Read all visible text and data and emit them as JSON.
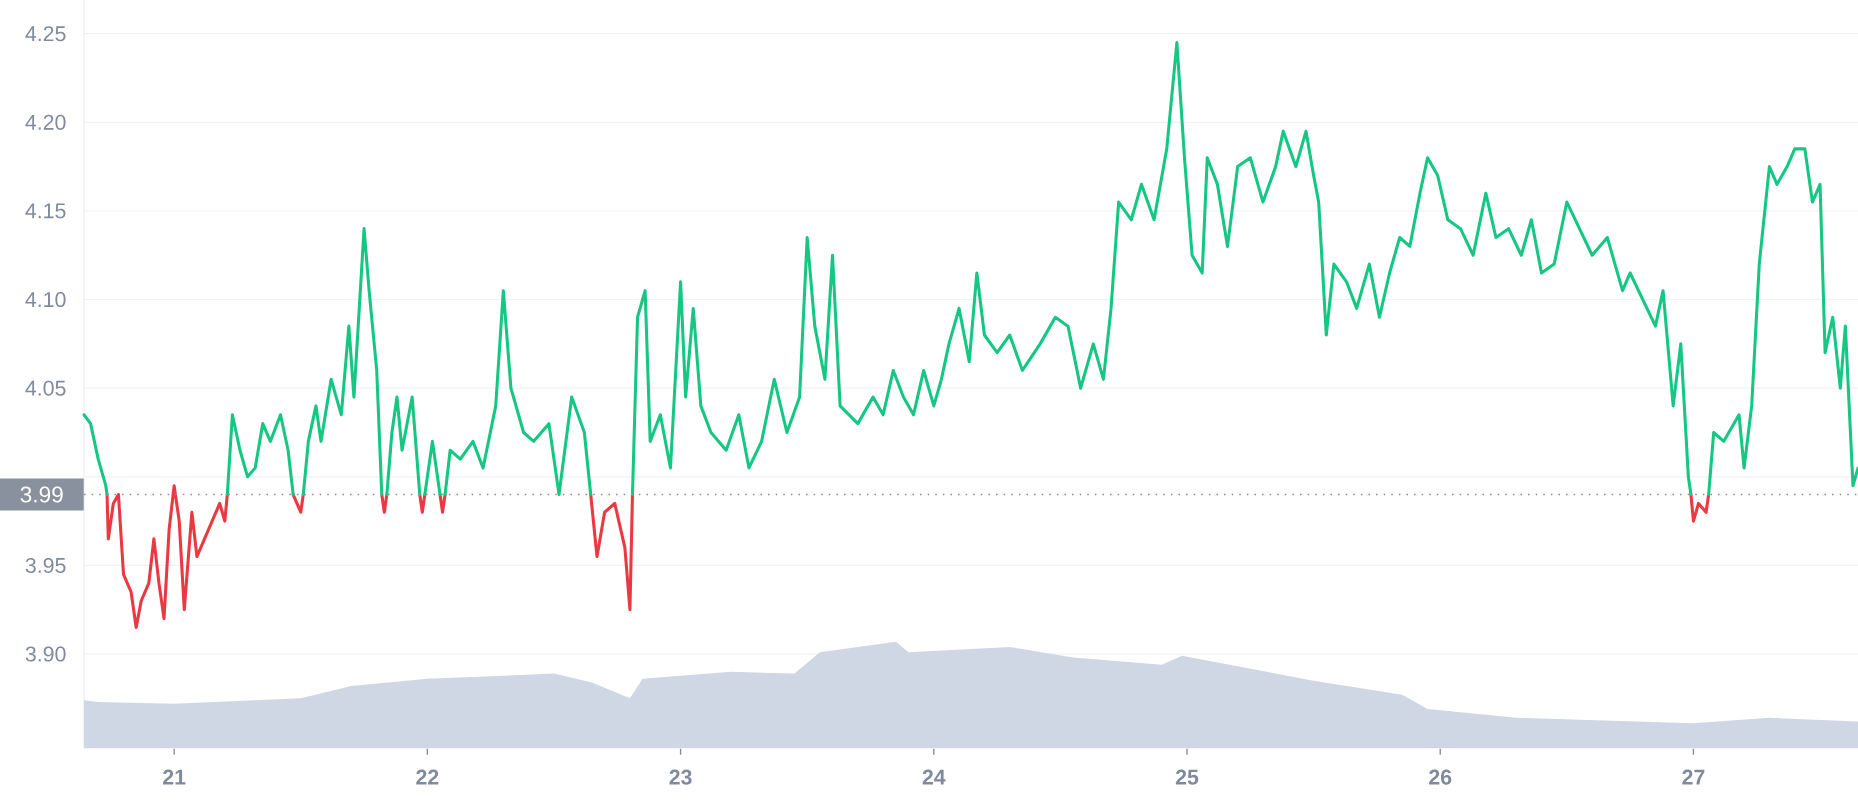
{
  "chart_data": {
    "type": "line",
    "xlim": [
      20.644,
      27.65
    ],
    "ylim": [
      3.847,
      4.269
    ],
    "xticks": [
      21,
      22,
      23,
      24,
      25,
      26,
      27
    ],
    "yticks": [
      {
        "value": 3.9,
        "label": "3.90"
      },
      {
        "value": 3.95,
        "label": "3.95"
      },
      {
        "value": 4.0,
        "label": null
      },
      {
        "value": 4.05,
        "label": "4.05"
      },
      {
        "value": 4.1,
        "label": "4.10"
      },
      {
        "value": 4.15,
        "label": "4.15"
      },
      {
        "value": 4.2,
        "label": "4.20"
      },
      {
        "value": 4.25,
        "label": "4.25"
      }
    ],
    "grid": "y",
    "ref_lines": [
      {
        "axis": "y",
        "value": 3.99,
        "label": "3.99",
        "color": "#8a919e",
        "line_style": "dotted"
      }
    ],
    "series": [
      {
        "type": "area",
        "color": "#cfd6e4",
        "x": [
          20.644,
          20.7,
          21.0,
          21.5,
          21.7,
          22.0,
          22.5,
          22.65,
          22.8,
          22.85,
          23.2,
          23.45,
          23.55,
          23.85,
          23.9,
          24.3,
          24.55,
          24.9,
          24.98,
          25.5,
          25.85,
          25.95,
          26.3,
          27.0,
          27.3,
          27.65
        ],
        "values": [
          3.874,
          3.873,
          3.872,
          3.875,
          3.882,
          3.886,
          3.889,
          3.884,
          3.875,
          3.886,
          3.89,
          3.889,
          3.901,
          3.907,
          3.901,
          3.904,
          3.898,
          3.894,
          3.899,
          3.885,
          3.877,
          3.869,
          3.864,
          3.861,
          3.864,
          3.862
        ]
      },
      {
        "color": "#ea3943",
        "x": [
          20.735,
          20.74,
          20.76,
          20.78,
          20.8,
          20.83,
          20.85,
          20.87,
          20.9,
          20.92,
          20.94,
          20.96,
          20.98,
          21.0,
          21.02,
          21.04,
          21.07,
          21.09,
          21.12,
          21.15,
          21.18,
          21.2,
          21.21,
          21.35,
          21.47,
          21.5,
          21.51,
          21.65,
          21.82,
          21.83,
          21.84,
          21.9,
          21.97,
          21.98,
          21.99,
          22.02,
          22.05,
          22.06,
          22.07,
          22.3,
          22.645,
          22.67,
          22.7,
          22.74,
          22.78,
          22.8,
          22.81,
          23.5,
          26.99,
          27.0,
          27.02,
          27.05,
          27.06
        ],
        "values": [
          3.99,
          3.965,
          3.985,
          3.99,
          3.945,
          3.935,
          3.915,
          3.93,
          3.94,
          3.965,
          3.94,
          3.92,
          3.97,
          3.995,
          3.975,
          3.925,
          3.98,
          3.955,
          3.965,
          3.975,
          3.985,
          3.975,
          3.99,
          null,
          3.99,
          3.98,
          3.99,
          null,
          3.99,
          3.98,
          3.99,
          null,
          3.99,
          3.98,
          3.99,
          null,
          3.99,
          3.98,
          3.99,
          null,
          3.99,
          3.955,
          3.98,
          3.985,
          3.96,
          3.925,
          3.99,
          null,
          3.99,
          3.975,
          3.985,
          3.98,
          3.99
        ]
      },
      {
        "color": "#16c784",
        "x": [
          20.644,
          20.67,
          20.7,
          20.73,
          20.735,
          20.8,
          21.21,
          21.23,
          21.26,
          21.29,
          21.32,
          21.35,
          21.38,
          21.42,
          21.45,
          21.47,
          21.5,
          21.51,
          21.53,
          21.56,
          21.58,
          21.62,
          21.66,
          21.69,
          21.71,
          21.75,
          21.77,
          21.8,
          21.82,
          21.83,
          21.84,
          21.86,
          21.88,
          21.9,
          21.94,
          21.97,
          21.98,
          21.99,
          22.02,
          22.05,
          22.06,
          22.07,
          22.09,
          22.13,
          22.18,
          22.22,
          22.27,
          22.3,
          22.33,
          22.38,
          22.42,
          22.48,
          22.52,
          22.57,
          22.62,
          22.645,
          22.7,
          22.81,
          22.83,
          22.86,
          22.88,
          22.92,
          22.96,
          23.0,
          23.02,
          23.05,
          23.08,
          23.12,
          23.18,
          23.23,
          23.27,
          23.32,
          23.37,
          23.42,
          23.47,
          23.5,
          23.53,
          23.57,
          23.6,
          23.63,
          23.7,
          23.76,
          23.8,
          23.84,
          23.88,
          23.92,
          23.96,
          24.0,
          24.03,
          24.06,
          24.1,
          24.14,
          24.17,
          24.2,
          24.25,
          24.3,
          24.35,
          24.42,
          24.48,
          24.53,
          24.58,
          24.63,
          24.67,
          24.7,
          24.73,
          24.78,
          24.82,
          24.87,
          24.92,
          24.96,
          24.99,
          25.02,
          25.06,
          25.08,
          25.12,
          25.16,
          25.2,
          25.25,
          25.3,
          25.35,
          25.38,
          25.43,
          25.47,
          25.5,
          25.52,
          25.55,
          25.58,
          25.63,
          25.67,
          25.72,
          25.76,
          25.8,
          25.84,
          25.88,
          25.92,
          25.95,
          25.99,
          26.03,
          26.08,
          26.13,
          26.18,
          26.22,
          26.27,
          26.32,
          26.36,
          26.4,
          26.45,
          26.5,
          26.55,
          26.6,
          26.66,
          26.72,
          26.75,
          26.8,
          26.85,
          26.88,
          26.92,
          26.95,
          26.98,
          26.99,
          27.02,
          27.06,
          27.08,
          27.12,
          27.18,
          27.2,
          27.23,
          27.26,
          27.3,
          27.33,
          27.37,
          27.4,
          27.44,
          27.47,
          27.5,
          27.52,
          27.55,
          27.58,
          27.6,
          27.63,
          27.65
        ],
        "values": [
          4.035,
          4.03,
          4.01,
          3.995,
          3.99,
          null,
          3.99,
          4.035,
          4.015,
          4.0,
          4.005,
          4.03,
          4.02,
          4.035,
          4.015,
          3.99,
          null,
          3.99,
          4.02,
          4.04,
          4.02,
          4.055,
          4.035,
          4.085,
          4.045,
          4.14,
          4.105,
          4.06,
          3.99,
          null,
          3.99,
          4.025,
          4.045,
          4.015,
          4.045,
          3.99,
          null,
          3.99,
          4.02,
          3.99,
          null,
          3.99,
          4.015,
          4.01,
          4.02,
          4.005,
          4.04,
          4.105,
          4.05,
          4.025,
          4.02,
          4.03,
          3.99,
          4.045,
          4.025,
          3.99,
          null,
          3.99,
          4.09,
          4.105,
          4.02,
          4.035,
          4.005,
          4.11,
          4.045,
          4.095,
          4.04,
          4.025,
          4.015,
          4.035,
          4.005,
          4.02,
          4.055,
          4.025,
          4.045,
          4.135,
          4.085,
          4.055,
          4.125,
          4.04,
          4.03,
          4.045,
          4.035,
          4.06,
          4.045,
          4.035,
          4.06,
          4.04,
          4.055,
          4.075,
          4.095,
          4.065,
          4.115,
          4.08,
          4.07,
          4.08,
          4.06,
          4.075,
          4.09,
          4.085,
          4.05,
          4.075,
          4.055,
          4.095,
          4.155,
          4.145,
          4.165,
          4.145,
          4.185,
          4.245,
          4.18,
          4.125,
          4.115,
          4.18,
          4.165,
          4.13,
          4.175,
          4.18,
          4.155,
          4.175,
          4.195,
          4.175,
          4.195,
          4.17,
          4.155,
          4.08,
          4.12,
          4.11,
          4.095,
          4.12,
          4.09,
          4.115,
          4.135,
          4.13,
          4.16,
          4.18,
          4.17,
          4.145,
          4.14,
          4.125,
          4.16,
          4.135,
          4.14,
          4.125,
          4.145,
          4.115,
          4.12,
          4.155,
          4.14,
          4.125,
          4.135,
          4.105,
          4.115,
          4.1,
          4.085,
          4.105,
          4.04,
          4.075,
          4.0,
          3.99,
          null,
          3.99,
          4.025,
          4.02,
          4.035,
          4.005,
          4.04,
          4.12,
          4.175,
          4.165,
          4.175,
          4.185,
          4.185,
          4.155,
          4.165,
          4.07,
          4.09,
          4.05,
          4.085,
          3.995,
          4.005
        ]
      }
    ]
  }
}
